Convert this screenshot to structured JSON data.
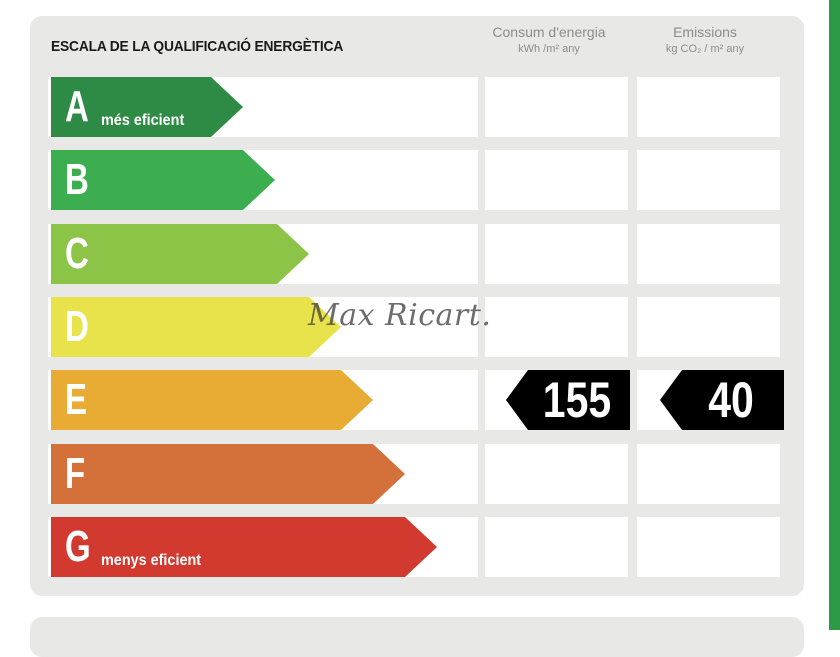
{
  "header": {
    "title": "ESCALA DE LA QUALIFICACIÓ ENERGÈTICA",
    "consumption": {
      "label": "Consum d'energia",
      "unit": "kWh /m² any"
    },
    "emissions": {
      "label": "Emissions",
      "unit": "kg CO₂ / m² any"
    }
  },
  "ratings": [
    {
      "letter": "A",
      "note": "més eficient",
      "color": "#2e8b45"
    },
    {
      "letter": "B",
      "note": "",
      "color": "#3dae4f"
    },
    {
      "letter": "C",
      "note": "",
      "color": "#8cc447"
    },
    {
      "letter": "D",
      "note": "",
      "color": "#e8e34a"
    },
    {
      "letter": "E",
      "note": "",
      "color": "#e8ac35"
    },
    {
      "letter": "F",
      "note": "",
      "color": "#d4703a"
    },
    {
      "letter": "G",
      "note": "menys eficient",
      "color": "#d2392f"
    }
  ],
  "result": {
    "rating": "E",
    "consumption_value": "155",
    "emissions_value": "40",
    "tag_color": "#000000"
  },
  "watermark": "Max Ricart."
}
